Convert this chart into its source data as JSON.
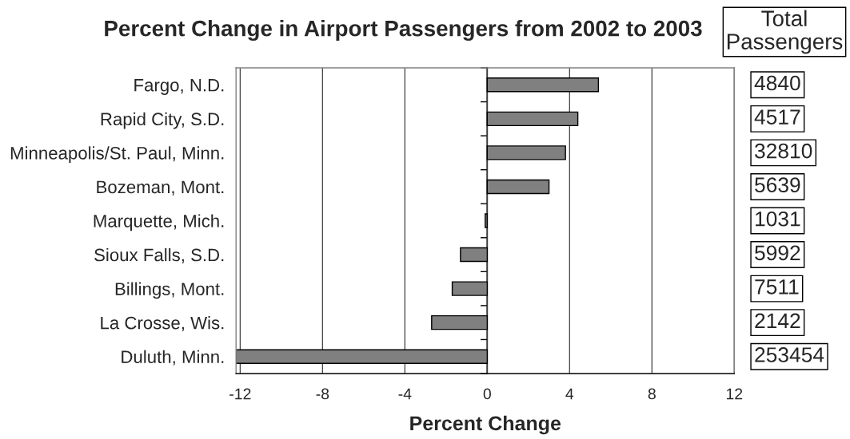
{
  "chart_data": {
    "type": "bar",
    "orientation": "horizontal",
    "title": "Percent Change in Airport Passengers from 2002 to 2003",
    "xlabel": "Percent Change",
    "categories": [
      "Fargo, N.D.",
      "Rapid City, S.D.",
      "Minneapolis/St. Paul, Minn.",
      "Bozeman, Mont.",
      "Marquette, Mich.",
      "Sioux Falls, S.D.",
      "Billings, Mont.",
      "La Crosse, Wis.",
      "Duluth, Minn."
    ],
    "values": [
      5.4,
      4.4,
      3.8,
      3.0,
      -0.1,
      -1.3,
      -1.7,
      -2.7,
      -12.2
    ],
    "color": "#808080",
    "xlim": [
      -12.2,
      12
    ],
    "xticks": [
      -12,
      -8,
      -4,
      0,
      4,
      8,
      12
    ],
    "grid": "x",
    "annotations": [
      "Total\nPassengers",
      "4840",
      "4517",
      "32810",
      "5639",
      "1031",
      "5992",
      "7511",
      "2142",
      "253454"
    ]
  }
}
